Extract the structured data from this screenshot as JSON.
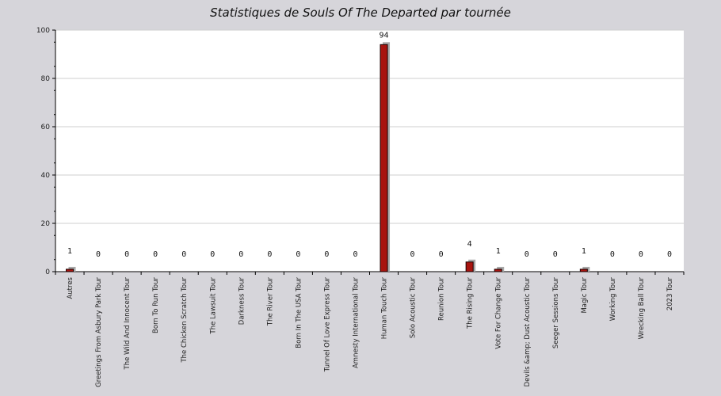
{
  "chart_data": {
    "type": "bar",
    "title": "Statistiques de Souls Of The Departed par tournée",
    "xlabel": "",
    "ylabel": "",
    "ylim": [
      0,
      100
    ],
    "yticks": [
      0,
      20,
      40,
      60,
      80,
      100
    ],
    "grid": true,
    "categories": [
      "Autres",
      "Greetings From Asbury Park Tour",
      "The Wild And Innocent Tour",
      "Born To Run Tour",
      "The Chicken Scratch Tour",
      "The Lawsuit Tour",
      "Darkness Tour",
      "The River Tour",
      "Born In The USA Tour",
      "Tunnel Of Love Express Tour",
      "Amnesty International Tour",
      "Human Touch Tour",
      "Solo Acoustic Tour",
      "Reunion Tour",
      "The Rising Tour",
      "Vote For Change Tour",
      "Devils &amp; Dust Acoustic Tour",
      "Seeger Sessions Tour",
      "Magic Tour",
      "Working Tour",
      "Wrecking Ball Tour",
      "2023 Tour"
    ],
    "values": [
      1,
      0,
      0,
      0,
      0,
      0,
      0,
      0,
      0,
      0,
      0,
      94,
      0,
      0,
      4,
      1,
      0,
      0,
      1,
      0,
      0,
      0
    ],
    "colors": {
      "bar": "#a8140f",
      "bar_stroke": "#1a0000",
      "shadow": "#a9a9a9",
      "background": "#d6d5da",
      "plot": "#ffffff",
      "grid": "#cfcfcf"
    }
  }
}
